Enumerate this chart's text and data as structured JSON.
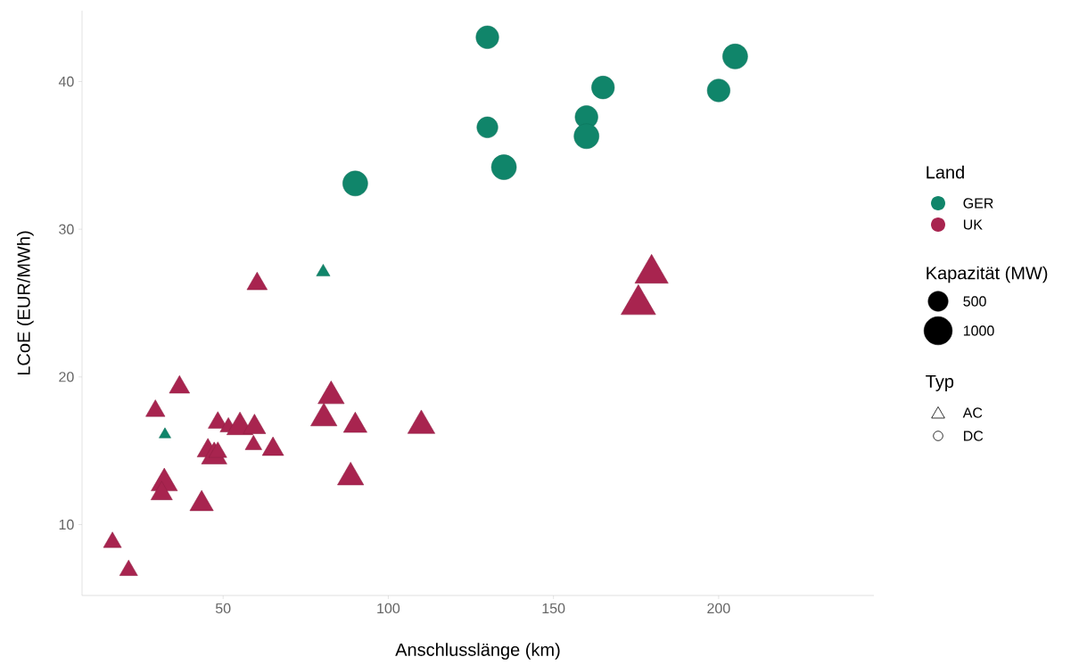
{
  "chart_data": {
    "type": "bubble",
    "xlabel": "Anschlusslänge (km)",
    "ylabel": "LCoE (EUR/MWh)",
    "legend_title": "Land",
    "legend": "right",
    "annotations": [
      "Kapazität (MW)",
      "Typ",
      "AC",
      "DC"
    ],
    "xlim": [
      7.3,
      247
    ],
    "ylim": [
      5.2,
      44.8
    ],
    "xticks": [
      50,
      100,
      150,
      200
    ],
    "yticks": [
      10,
      20,
      30,
      40
    ],
    "size_legend": [
      500,
      1000
    ],
    "series": [
      {
        "name": "GER",
        "color": "#10856a",
        "marker": "circle",
        "x": [
          130,
          165,
          160,
          160,
          130,
          135,
          90,
          205,
          200
        ],
        "values": [
          43.0,
          39.6,
          37.6,
          36.3,
          36.9,
          34.2,
          33.1,
          41.7,
          39.4
        ],
        "sizes": [
          650,
          650,
          650,
          780,
          550,
          780,
          780,
          780,
          650
        ]
      },
      {
        "color": "#10856a",
        "marker": "triangle",
        "x": [
          80.3,
          32.4
        ],
        "values": [
          27.1,
          16.1
        ],
        "sizes": [
          200,
          150
        ]
      },
      {
        "name": "UK",
        "color": "#a8244f",
        "marker": "triangle",
        "x": [
          60.3,
          36.8,
          29.5,
          48.4,
          51.6,
          55.1,
          59.5,
          59.2,
          65.1,
          45.4,
          47.3,
          48.4,
          82.7,
          80.5,
          90,
          110,
          88.6,
          32.2,
          31.4,
          43.5,
          16.5,
          21.4,
          179.7,
          175.7
        ],
        "values": [
          26.3,
          19.3,
          17.7,
          16.9,
          16.6,
          16.6,
          16.6,
          15.4,
          15.1,
          15.0,
          14.6,
          14.9,
          18.7,
          17.2,
          16.7,
          16.7,
          13.2,
          12.8,
          12.1,
          11.4,
          8.8,
          6.9,
          27.0,
          24.9
        ],
        "sizes": [
          450,
          450,
          400,
          400,
          300,
          750,
          550,
          300,
          500,
          500,
          700,
          350,
          750,
          750,
          600,
          800,
          750,
          750,
          500,
          600,
          350,
          350,
          1200,
          1300
        ]
      }
    ]
  }
}
